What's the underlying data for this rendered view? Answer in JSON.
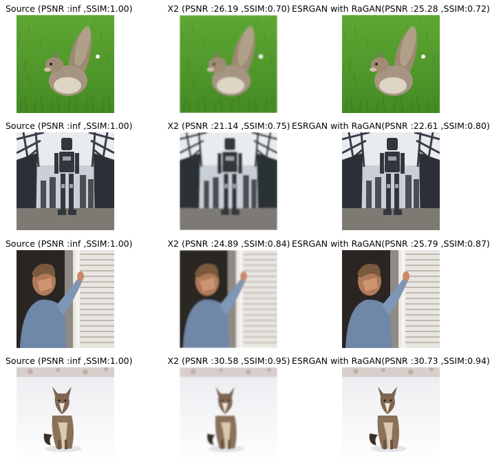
{
  "rows": [
    {
      "subject": "squirrel",
      "titles": [
        "Source (PSNR :inf ,SSIM:1.00)",
        "X2 (PSNR :26.19 ,SSIM:0.70)",
        "ESRGAN with RaGAN(PSNR :25.28 ,SSIM:0.72)"
      ]
    },
    {
      "subject": "robot",
      "titles": [
        "Source (PSNR :inf ,SSIM:1.00)",
        "X2 (PSNR :21.14 ,SSIM:0.75)",
        "ESRGAN with RaGAN(PSNR :22.61 ,SSIM:0.80)"
      ]
    },
    {
      "subject": "man-at-window",
      "titles": [
        "Source (PSNR :inf ,SSIM:1.00)",
        "X2 (PSNR :24.89 ,SSIM:0.84)",
        "ESRGAN with RaGAN(PSNR :25.79 ,SSIM:0.87)"
      ]
    },
    {
      "subject": "coyote-in-snow",
      "titles": [
        "Source (PSNR :inf ,SSIM:1.00)",
        "X2 (PSNR :30.58 ,SSIM:0.95)",
        "ESRGAN with RaGAN(PSNR :30.73 ,SSIM:0.94)"
      ]
    }
  ]
}
